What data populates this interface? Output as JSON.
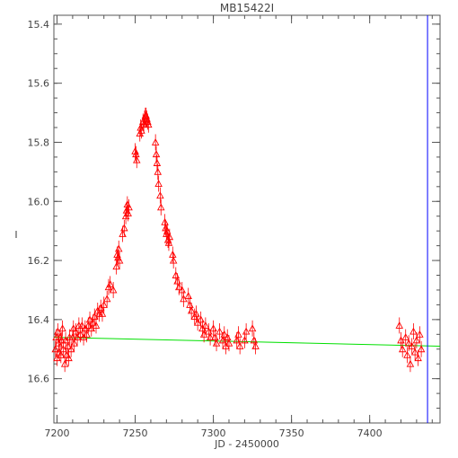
{
  "chart_data": {
    "type": "scatter",
    "title": "MB15422I",
    "xlabel": "JD - 2450000",
    "ylabel": "I",
    "xlim": [
      7198,
      7445
    ],
    "ylim": [
      16.75,
      15.37
    ],
    "y_inverted": true,
    "grid": false,
    "legend": "none",
    "x_ticks": [
      7200,
      7250,
      7300,
      7350,
      7400
    ],
    "x_tick_labels": [
      "7200",
      "7250",
      "7300",
      "7350",
      "7400"
    ],
    "y_ticks": [
      15.4,
      15.6,
      15.8,
      16.0,
      16.2,
      16.4,
      16.6
    ],
    "y_tick_labels": [
      "15.4",
      "15.6",
      "15.8",
      "16.0",
      "16.2",
      "16.4",
      "16.6"
    ],
    "marker": "open-triangle",
    "marker_color": "#ff0000",
    "series": [
      {
        "points": [
          [
            7199.0,
            16.5
          ],
          [
            7199.5,
            16.46
          ],
          [
            7200.0,
            16.53
          ],
          [
            7200.5,
            16.44
          ],
          [
            7201.0,
            16.48
          ],
          [
            7201.5,
            16.51
          ],
          [
            7202.0,
            16.46
          ],
          [
            7202.5,
            16.52
          ],
          [
            7203.0,
            16.47
          ],
          [
            7203.5,
            16.43
          ],
          [
            7204.0,
            16.5
          ],
          [
            7205.0,
            16.55
          ],
          [
            7205.5,
            16.47
          ],
          [
            7206.0,
            16.52
          ],
          [
            7207.0,
            16.49
          ],
          [
            7207.5,
            16.53
          ],
          [
            7208.0,
            16.46
          ],
          [
            7209.0,
            16.5
          ],
          [
            7210.0,
            16.46
          ],
          [
            7210.5,
            16.43
          ],
          [
            7211.0,
            16.48
          ],
          [
            7212.0,
            16.44
          ],
          [
            7213.0,
            16.46
          ],
          [
            7214.0,
            16.42
          ],
          [
            7215.0,
            16.45
          ],
          [
            7216.0,
            16.42
          ],
          [
            7217.0,
            16.46
          ],
          [
            7218.0,
            16.43
          ],
          [
            7219.0,
            16.45
          ],
          [
            7220.0,
            16.42
          ],
          [
            7221.0,
            16.4
          ],
          [
            7222.0,
            16.43
          ],
          [
            7223.0,
            16.41
          ],
          [
            7224.0,
            16.39
          ],
          [
            7225.0,
            16.42
          ],
          [
            7226.0,
            16.37
          ],
          [
            7227.0,
            16.38
          ],
          [
            7228.0,
            16.36
          ],
          [
            7229.0,
            16.38
          ],
          [
            7230.0,
            16.35
          ],
          [
            7232.0,
            16.33
          ],
          [
            7233.0,
            16.29
          ],
          [
            7234.0,
            16.28
          ],
          [
            7236.0,
            16.3
          ],
          [
            7238.0,
            16.22
          ],
          [
            7238.5,
            16.18
          ],
          [
            7239.0,
            16.19
          ],
          [
            7239.5,
            16.16
          ],
          [
            7240.0,
            16.2
          ],
          [
            7242.0,
            16.11
          ],
          [
            7243.0,
            16.09
          ],
          [
            7244.0,
            16.05
          ],
          [
            7244.5,
            16.03
          ],
          [
            7245.0,
            16.01
          ],
          [
            7245.5,
            16.04
          ],
          [
            7246.0,
            16.02
          ],
          [
            7250.0,
            15.83
          ],
          [
            7250.5,
            15.84
          ],
          [
            7251.0,
            15.86
          ],
          [
            7253.0,
            15.77
          ],
          [
            7253.5,
            15.75
          ],
          [
            7254.0,
            15.76
          ],
          [
            7255.0,
            15.73
          ],
          [
            7255.5,
            15.74
          ],
          [
            7256.0,
            15.72
          ],
          [
            7256.5,
            15.71
          ],
          [
            7257.0,
            15.71
          ],
          [
            7257.5,
            15.72
          ],
          [
            7258.0,
            15.73
          ],
          [
            7258.5,
            15.74
          ],
          [
            7263.0,
            15.8
          ],
          [
            7263.5,
            15.84
          ],
          [
            7264.0,
            15.87
          ],
          [
            7264.5,
            15.9
          ],
          [
            7265.0,
            15.94
          ],
          [
            7266.0,
            15.98
          ],
          [
            7266.5,
            16.02
          ],
          [
            7269.0,
            16.07
          ],
          [
            7269.5,
            16.09
          ],
          [
            7270.0,
            16.11
          ],
          [
            7270.5,
            16.1
          ],
          [
            7271.0,
            16.13
          ],
          [
            7271.5,
            16.14
          ],
          [
            7272.0,
            16.12
          ],
          [
            7274.0,
            16.18
          ],
          [
            7274.5,
            16.2
          ],
          [
            7276.0,
            16.25
          ],
          [
            7277.0,
            16.27
          ],
          [
            7278.0,
            16.29
          ],
          [
            7280.0,
            16.3
          ],
          [
            7281.0,
            16.33
          ],
          [
            7284.0,
            16.32
          ],
          [
            7285.0,
            16.35
          ],
          [
            7286.0,
            16.37
          ],
          [
            7288.0,
            16.39
          ],
          [
            7289.0,
            16.38
          ],
          [
            7290.0,
            16.41
          ],
          [
            7292.0,
            16.4
          ],
          [
            7293.0,
            16.43
          ],
          [
            7294.0,
            16.45
          ],
          [
            7295.0,
            16.42
          ],
          [
            7297.0,
            16.44
          ],
          [
            7298.0,
            16.46
          ],
          [
            7300.0,
            16.43
          ],
          [
            7301.0,
            16.46
          ],
          [
            7302.0,
            16.48
          ],
          [
            7304.0,
            16.44
          ],
          [
            7306.0,
            16.47
          ],
          [
            7307.0,
            16.45
          ],
          [
            7308.0,
            16.49
          ],
          [
            7309.0,
            16.46
          ],
          [
            7310.0,
            16.48
          ],
          [
            7315.0,
            16.47
          ],
          [
            7316.0,
            16.45
          ],
          [
            7317.0,
            16.49
          ],
          [
            7320.0,
            16.47
          ],
          [
            7321.0,
            16.44
          ],
          [
            7325.0,
            16.43
          ],
          [
            7326.0,
            16.47
          ],
          [
            7327.0,
            16.49
          ],
          [
            7419.0,
            16.42
          ],
          [
            7420.0,
            16.47
          ],
          [
            7421.0,
            16.5
          ],
          [
            7423.0,
            16.46
          ],
          [
            7424.0,
            16.52
          ],
          [
            7425.0,
            16.48
          ],
          [
            7426.0,
            16.55
          ],
          [
            7427.0,
            16.49
          ],
          [
            7428.0,
            16.44
          ],
          [
            7429.0,
            16.51
          ],
          [
            7430.0,
            16.47
          ],
          [
            7431.0,
            16.53
          ],
          [
            7432.0,
            16.45
          ],
          [
            7433.0,
            16.5
          ]
        ]
      }
    ],
    "trend_line": {
      "color": "#00e000",
      "points": [
        [
          7198,
          16.46
        ],
        [
          7445,
          16.49
        ]
      ]
    },
    "vertical_line": {
      "x": 7437,
      "color": "#0000ff"
    }
  }
}
